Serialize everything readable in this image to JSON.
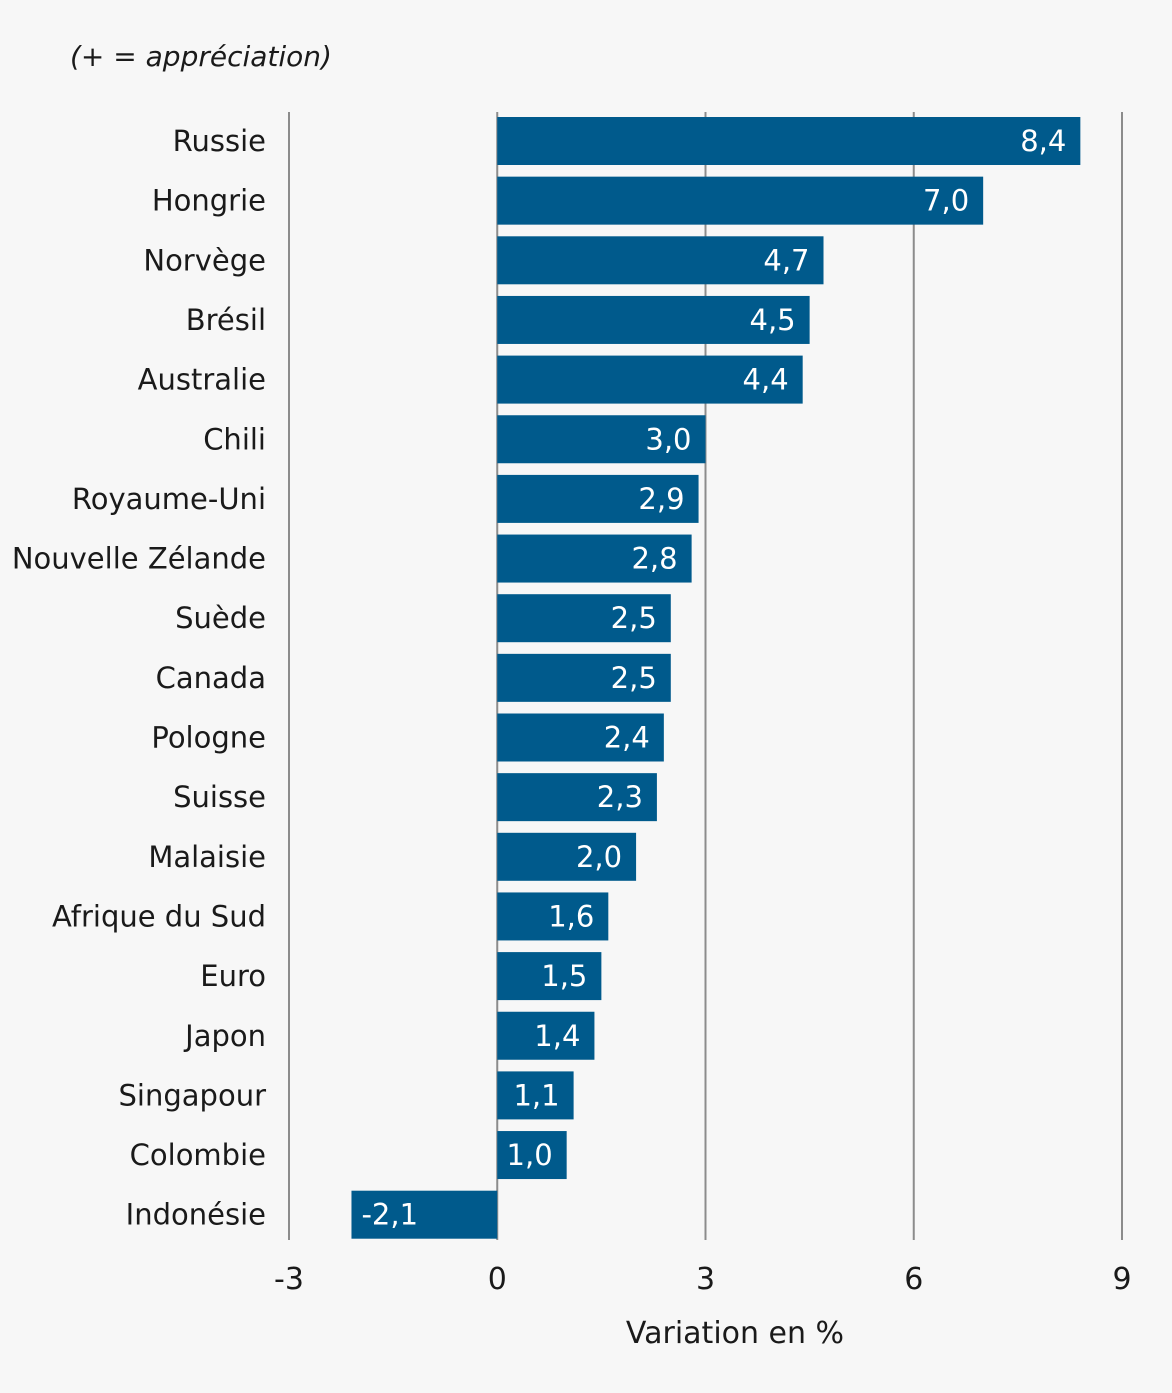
{
  "chart_data": {
    "type": "bar",
    "orientation": "horizontal",
    "annotation": "(+ = appréciation)",
    "xlabel": "Variation en %",
    "ylabel": "",
    "xlim": [
      -3,
      9
    ],
    "xticks": [
      -3,
      0,
      3,
      6,
      9
    ],
    "xtick_labels": [
      "-3",
      "0",
      "3",
      "6",
      "9"
    ],
    "grid": "vertical",
    "bar_color": "#005a8c",
    "categories": [
      "Russie",
      "Hongrie",
      "Norvège",
      "Brésil",
      "Australie",
      "Chili",
      "Royaume-Uni",
      "Nouvelle Zélande",
      "Suède",
      "Canada",
      "Pologne",
      "Suisse",
      "Malaisie",
      "Afrique du Sud",
      "Euro",
      "Japon",
      "Singapour",
      "Colombie",
      "Indonésie"
    ],
    "values": [
      8.4,
      7.0,
      4.7,
      4.5,
      4.4,
      3.0,
      2.9,
      2.8,
      2.5,
      2.5,
      2.4,
      2.3,
      2.0,
      1.6,
      1.5,
      1.4,
      1.1,
      1.0,
      -2.1
    ],
    "value_labels": [
      "8,4",
      "7,0",
      "4,7",
      "4,5",
      "4,4",
      "3,0",
      "2,9",
      "2,8",
      "2,5",
      "2,5",
      "2,4",
      "2,3",
      "2,0",
      "1,6",
      "1,5",
      "1,4",
      "1,1",
      "1,0",
      "-2,1"
    ]
  }
}
